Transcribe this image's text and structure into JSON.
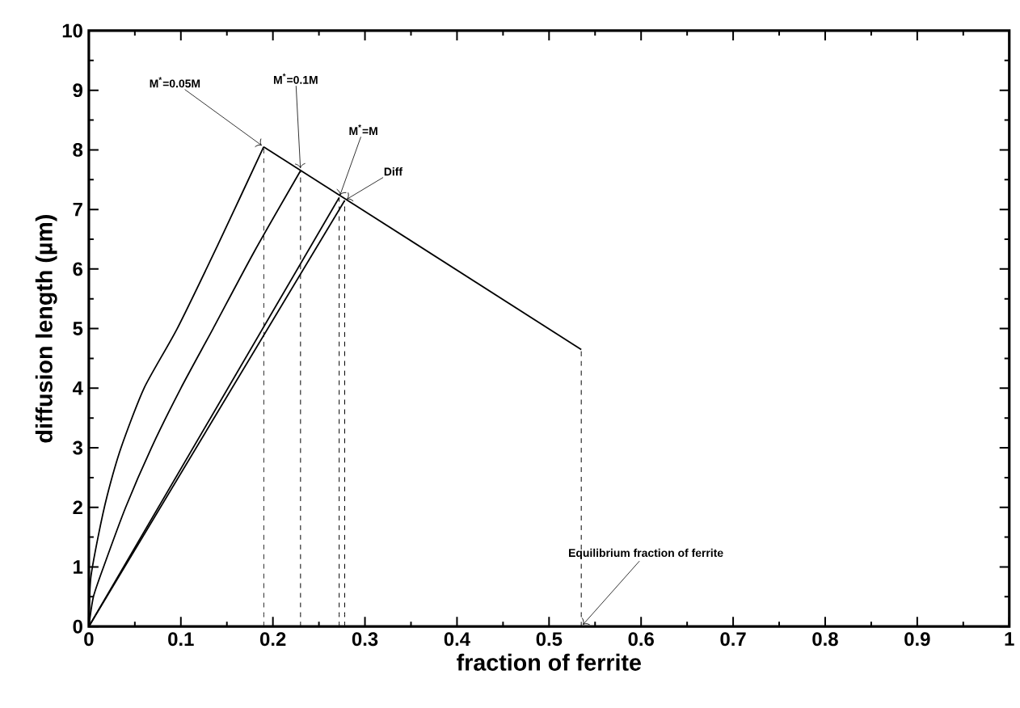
{
  "chart_data": {
    "type": "line",
    "xlabel": "fraction of ferrite",
    "ylabel": "diffusion length (µm)",
    "xlim": [
      0,
      1
    ],
    "ylim": [
      0,
      10
    ],
    "xticks": [
      0,
      0.1,
      0.2,
      0.3,
      0.4,
      0.5,
      0.6,
      0.7,
      0.8,
      0.9,
      1
    ],
    "yticks": [
      0,
      1,
      2,
      3,
      4,
      5,
      6,
      7,
      8,
      9,
      10
    ],
    "grid": false,
    "series": [
      {
        "color": "#000000",
        "line_style": "solid",
        "x": [
          0,
          0.002,
          0.01,
          0.02,
          0.035,
          0.06,
          0.096,
          0.14,
          0.19
        ],
        "values": [
          0,
          0.8,
          1.5,
          2.2,
          3,
          4,
          5,
          6.4,
          8.05
        ]
      },
      {
        "color": "#000000",
        "line_style": "solid",
        "x": [
          0,
          0.005,
          0.016,
          0.04,
          0.068,
          0.1,
          0.135,
          0.18,
          0.23
        ],
        "values": [
          0,
          0.5,
          1,
          2,
          3,
          4,
          5,
          6.3,
          7.65
        ]
      },
      {
        "color": "#000000",
        "line_style": "solid",
        "x": [
          0,
          0.272
        ],
        "values": [
          0,
          7.2
        ]
      },
      {
        "color": "#000000",
        "line_style": "solid",
        "x": [
          0,
          0.278
        ],
        "values": [
          0,
          7.15
        ]
      },
      {
        "color": "#000000",
        "line_style": "solid",
        "x": [
          0.19,
          0.535
        ],
        "values": [
          8.05,
          4.65
        ]
      },
      {
        "color": "#000000",
        "line_style": "dashed",
        "x": [
          0.19,
          0.19
        ],
        "values": [
          0,
          8.05
        ]
      },
      {
        "color": "#000000",
        "line_style": "dashed",
        "x": [
          0.23,
          0.23
        ],
        "values": [
          0,
          7.65
        ]
      },
      {
        "color": "#000000",
        "line_style": "dashed",
        "x": [
          0.272,
          0.272
        ],
        "values": [
          0,
          7.2
        ]
      },
      {
        "color": "#000000",
        "line_style": "dashed",
        "x": [
          0.278,
          0.278
        ],
        "values": [
          0,
          7.15
        ]
      },
      {
        "color": "#000000",
        "line_style": "dashed",
        "x": [
          0.535,
          0.535
        ],
        "values": [
          0,
          4.65
        ]
      }
    ],
    "annotations": [
      {
        "text": "M$^{*}$=0.05M",
        "x": 0.19,
        "y": 8.05
      },
      {
        "text": "M$^{*}$=0.1M",
        "x": 0.23,
        "y": 7.65
      },
      {
        "text": "M$^{*}$=M",
        "x": 0.272,
        "y": 7.2
      },
      {
        "text": "Diff",
        "x": 0.278,
        "y": 7.15
      },
      {
        "text": "Equilibrium fraction of ferrite",
        "x": 0.535,
        "y": 0
      }
    ]
  }
}
